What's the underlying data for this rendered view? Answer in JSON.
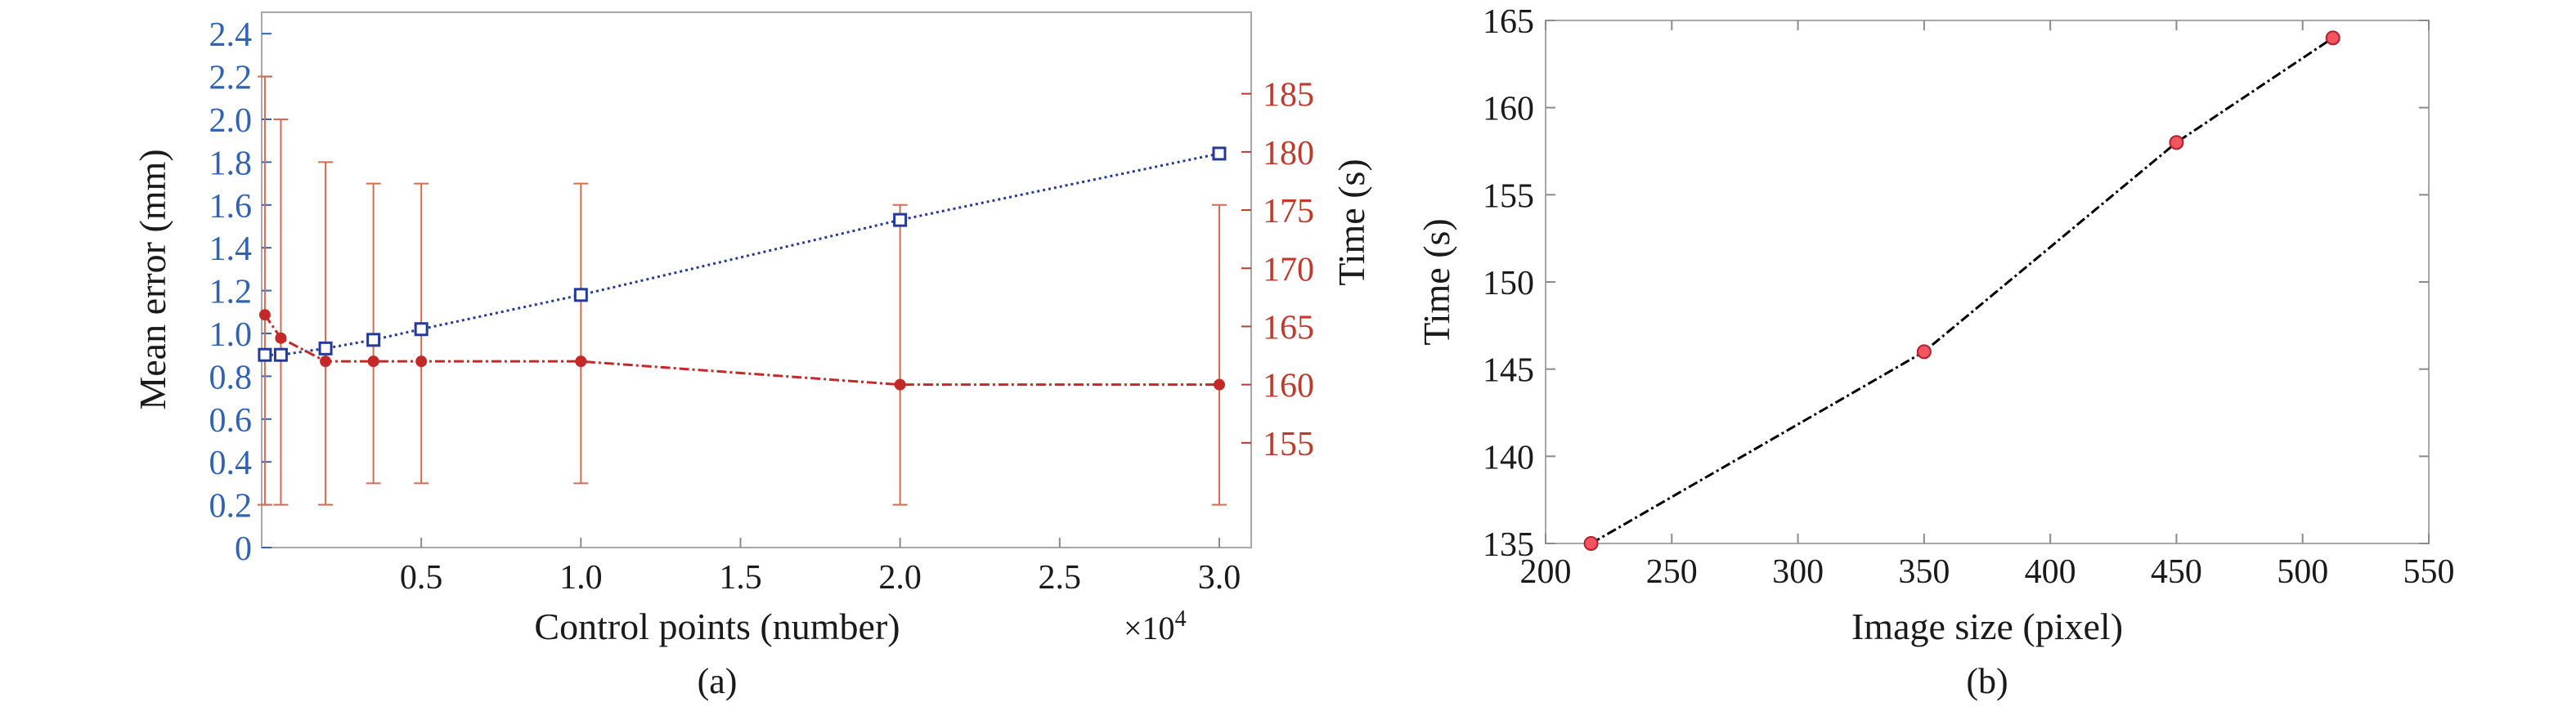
{
  "colors": {
    "left_axis": "#2e63b6",
    "right_axis": "#c0392b",
    "error_series": "#233a9a",
    "time_series": "#c62828",
    "errorbar": "#d86a4e",
    "chart_b_line": "#000000",
    "chart_b_marker_fill": "#f2555f",
    "chart_b_marker_edge": "#b3202c"
  },
  "chart_data": [
    {
      "type": "line",
      "panel_label": "(a)",
      "xlabel": "Control points (number)",
      "x_multiplier_text": "×10",
      "x_multiplier_exp": "4",
      "xlim": [
        0,
        3.1
      ],
      "xticks": [
        0.5,
        1.0,
        1.5,
        2.0,
        2.5,
        3.0
      ],
      "xtick_labels": [
        "0.5",
        "1.0",
        "1.5",
        "2.0",
        "2.5",
        "3.0"
      ],
      "ylabel_left": "Mean error (mm)",
      "ylim_left": [
        0,
        2.5
      ],
      "yticks_left": [
        0,
        0.2,
        0.4,
        0.6,
        0.8,
        1.0,
        1.2,
        1.4,
        1.6,
        1.8,
        2.0,
        2.2,
        2.4
      ],
      "ytick_labels_left": [
        "0",
        "0.2",
        "0.4",
        "0.6",
        "0.8",
        "1.0",
        "1.2",
        "1.4",
        "1.6",
        "1.8",
        "2.0",
        "2.2",
        "2.4"
      ],
      "ylabel_right": "Time (s)",
      "ylim_right": [
        146,
        192
      ],
      "yticks_right": [
        155,
        160,
        165,
        170,
        175,
        180,
        185
      ],
      "ytick_labels_right": [
        "155",
        "160",
        "165",
        "170",
        "175",
        "180",
        "185"
      ],
      "series": [
        {
          "axis": "left",
          "marker": "square",
          "line_style": "dotted",
          "x": [
            0.01,
            0.06,
            0.2,
            0.35,
            0.5,
            1.0,
            2.0,
            3.0
          ],
          "y": [
            0.9,
            0.9,
            0.93,
            0.97,
            1.02,
            1.18,
            1.53,
            1.84
          ]
        },
        {
          "axis": "right",
          "marker": "circle",
          "line_style": "dash-dot",
          "x": [
            0.01,
            0.06,
            0.2,
            0.35,
            0.5,
            1.0,
            2.0,
            3.0
          ],
          "y": [
            166,
            164,
            162,
            162,
            162,
            162,
            160,
            160
          ],
          "error_low_left_units": [
            0.2,
            0.2,
            0.2,
            0.3,
            0.3,
            0.3,
            0.2,
            0.2
          ],
          "error_high_left_units": [
            2.2,
            2.0,
            1.8,
            1.7,
            1.7,
            1.7,
            1.6,
            1.6
          ]
        }
      ]
    },
    {
      "type": "line",
      "panel_label": "(b)",
      "xlabel": "Image size (pixel)",
      "ylabel": "Time (s)",
      "xlim": [
        200,
        550
      ],
      "ylim": [
        135,
        165
      ],
      "xticks": [
        200,
        250,
        300,
        350,
        400,
        450,
        500,
        550
      ],
      "xtick_labels": [
        "200",
        "250",
        "300",
        "350",
        "400",
        "450",
        "500",
        "550"
      ],
      "yticks": [
        135,
        140,
        145,
        150,
        155,
        160,
        165
      ],
      "ytick_labels": [
        "135",
        "140",
        "145",
        "150",
        "155",
        "160",
        "165"
      ],
      "series": [
        {
          "marker": "circle",
          "line_style": "dash-dot",
          "x": [
            218,
            350,
            450,
            512
          ],
          "y": [
            135,
            146,
            158,
            164
          ]
        }
      ]
    }
  ]
}
